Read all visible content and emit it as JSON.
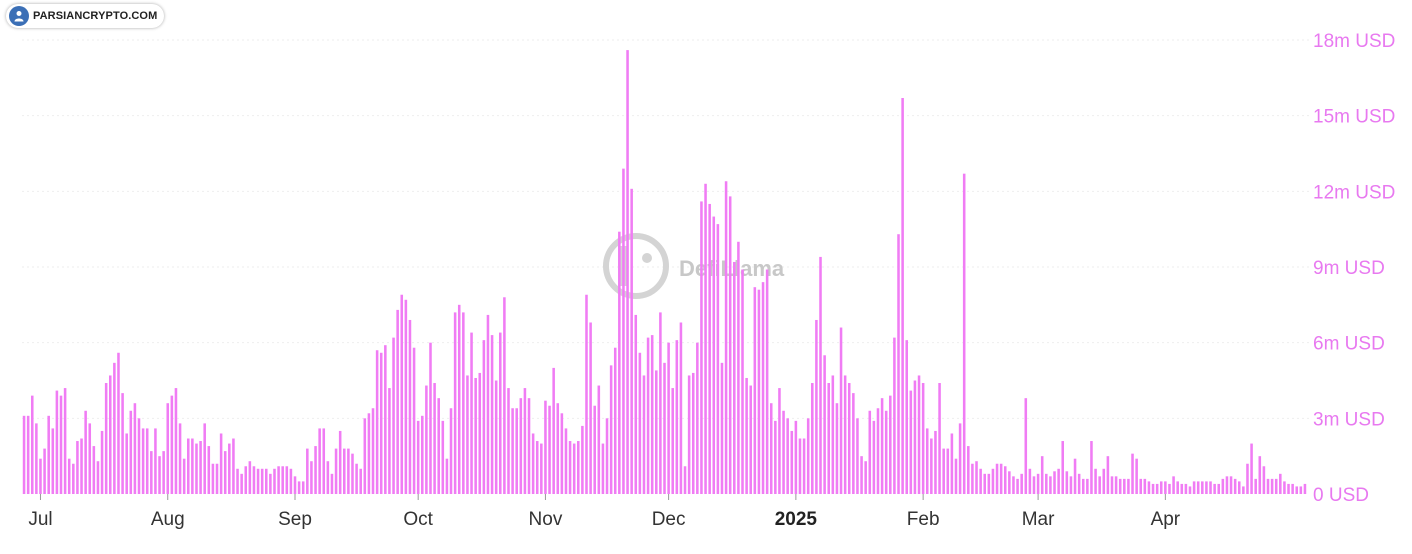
{
  "badge": {
    "text": "PARSIANCRYPTO.COM",
    "icon": "shield-person-icon"
  },
  "watermark": {
    "text": "DefiLlama",
    "icon": "llama-logo-icon"
  },
  "chart_data": {
    "type": "bar",
    "title": "",
    "xlabel": "",
    "ylabel": "",
    "color": "#f07cf4",
    "y_axis": {
      "position": "right",
      "min": 0,
      "max": 18,
      "unit": "m USD",
      "ticks": [
        0,
        3,
        6,
        9,
        12,
        15,
        18
      ],
      "tick_labels": [
        "0 USD",
        "3m USD",
        "6m USD",
        "9m USD",
        "12m USD",
        "15m USD",
        "18m USD"
      ]
    },
    "x_axis": {
      "start_date": "2024-06-27",
      "end_date": "2025-04-21",
      "month_labels": [
        "Jul",
        "Aug",
        "Sep",
        "Oct",
        "Nov",
        "Dec",
        "2025",
        "Feb",
        "Mar",
        "Apr"
      ],
      "bold_labels": [
        "2025"
      ]
    },
    "grid": "horizontal",
    "series": [
      {
        "values": [
          3.1,
          3.1,
          3.9,
          2.8,
          1.4,
          1.8,
          3.1,
          2.6,
          4.1,
          3.9,
          4.2,
          1.4,
          1.2,
          2.1,
          2.2,
          3.3,
          2.8,
          1.9,
          1.3,
          2.5,
          4.4,
          4.7,
          5.2,
          5.6,
          4.0,
          2.4,
          3.3,
          3.6,
          3.0,
          2.6,
          2.6,
          1.7,
          2.6,
          1.5,
          1.7,
          3.6,
          3.9,
          4.2,
          2.8,
          1.4,
          2.2,
          2.2,
          2.0,
          2.1,
          2.8,
          1.9,
          1.2,
          1.2,
          2.4,
          1.7,
          2.0,
          2.2,
          1.0,
          0.8,
          1.1,
          1.3,
          1.1,
          1.0,
          1.0,
          1.0,
          0.8,
          1.0,
          1.1,
          1.1,
          1.1,
          1.0,
          0.7,
          0.5,
          0.5,
          1.8,
          1.3,
          1.9,
          2.6,
          2.6,
          1.3,
          0.8,
          1.8,
          2.5,
          1.8,
          1.8,
          1.6,
          1.2,
          1.0,
          3.0,
          3.2,
          3.4,
          5.7,
          5.6,
          5.9,
          4.2,
          6.2,
          7.3,
          7.9,
          7.7,
          6.9,
          5.8,
          2.9,
          3.1,
          4.3,
          6.0,
          4.4,
          3.8,
          2.9,
          1.4,
          3.4,
          7.2,
          7.5,
          7.2,
          4.7,
          6.4,
          4.6,
          4.8,
          6.1,
          7.1,
          6.3,
          4.5,
          6.4,
          7.8,
          4.2,
          3.4,
          3.4,
          3.8,
          4.2,
          3.8,
          2.4,
          2.1,
          2.0,
          3.7,
          3.5,
          5.0,
          3.6,
          3.2,
          2.6,
          2.1,
          2.0,
          2.1,
          2.7,
          7.9,
          6.8,
          3.5,
          4.3,
          2.0,
          3.0,
          5.1,
          5.8,
          10.4,
          12.9,
          17.6,
          12.1,
          7.1,
          5.6,
          4.7,
          6.2,
          6.3,
          4.9,
          7.2,
          5.2,
          6.0,
          4.2,
          6.1,
          6.8,
          1.1,
          4.7,
          4.8,
          6.0,
          11.6,
          12.3,
          11.5,
          11.0,
          10.7,
          5.2,
          12.4,
          11.8,
          9.2,
          10.0,
          8.9,
          4.6,
          4.3,
          8.2,
          8.1,
          8.4,
          8.9,
          3.6,
          2.9,
          4.2,
          3.3,
          3.0,
          2.5,
          2.9,
          2.2,
          2.2,
          3.0,
          4.4,
          6.9,
          9.4,
          5.5,
          4.4,
          4.7,
          3.6,
          6.6,
          4.7,
          4.4,
          4.0,
          3.0,
          1.5,
          1.3,
          3.3,
          2.9,
          3.4,
          3.8,
          3.3,
          3.9,
          6.2,
          10.3,
          15.7,
          6.1,
          4.1,
          4.5,
          4.7,
          4.4,
          2.6,
          2.2,
          2.5,
          4.4,
          1.8,
          1.8,
          2.4,
          1.4,
          2.8,
          12.7,
          1.9,
          1.2,
          1.3,
          1.0,
          0.8,
          0.8,
          1.0,
          1.2,
          1.2,
          1.1,
          0.9,
          0.7,
          0.6,
          0.8,
          3.8,
          1.0,
          0.7,
          0.8,
          1.5,
          0.8,
          0.7,
          0.9,
          1.0,
          2.1,
          0.9,
          0.7,
          1.4,
          0.8,
          0.6,
          0.6,
          2.1,
          1.0,
          0.7,
          1.0,
          1.5,
          0.7,
          0.7,
          0.6,
          0.6,
          0.6,
          1.6,
          1.4,
          0.6,
          0.6,
          0.5,
          0.4,
          0.4,
          0.5,
          0.5,
          0.4,
          0.7,
          0.5,
          0.4,
          0.4,
          0.3,
          0.5,
          0.5,
          0.5,
          0.5,
          0.5,
          0.4,
          0.4,
          0.6,
          0.7,
          0.7,
          0.6,
          0.5,
          0.3,
          1.2,
          2.0,
          0.6,
          1.5,
          1.1,
          0.6,
          0.6,
          0.6,
          0.8,
          0.5,
          0.4,
          0.4,
          0.3,
          0.3,
          0.4
        ]
      }
    ]
  }
}
